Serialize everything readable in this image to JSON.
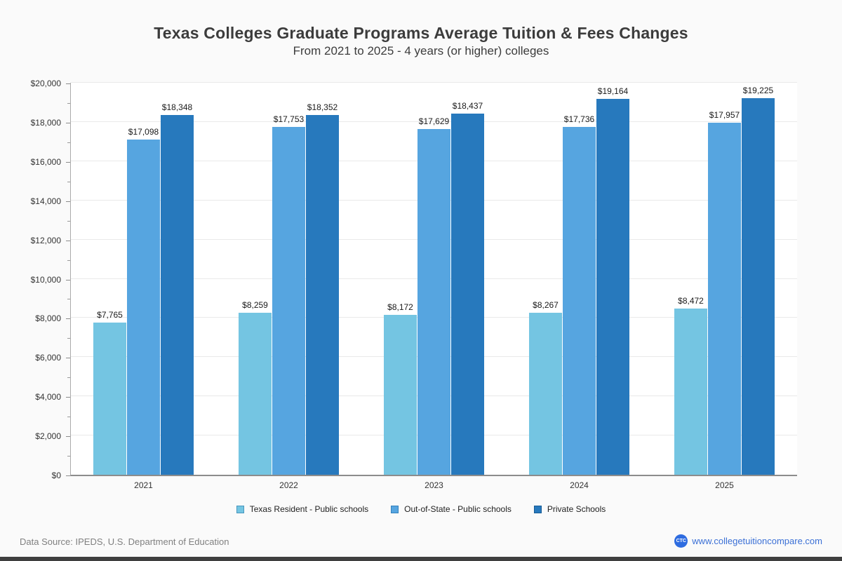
{
  "chart": {
    "title": "Texas Colleges Graduate Programs Average Tuition & Fees Changes",
    "subtitle": "From 2021 to 2025 - 4 years (or higher) colleges"
  },
  "chart_data": {
    "type": "bar",
    "categories": [
      "2021",
      "2022",
      "2023",
      "2024",
      "2025"
    ],
    "series": [
      {
        "name": "Texas Resident - Public schools",
        "color": "#74c5e2",
        "border": "#4896be",
        "values": [
          7765,
          8259,
          8172,
          8267,
          8472
        ]
      },
      {
        "name": "Out-of-State - Public schools",
        "color": "#56a5e0",
        "border": "#3381bd",
        "values": [
          17098,
          17753,
          17629,
          17736,
          17957
        ]
      },
      {
        "name": "Private Schools",
        "color": "#2779bd",
        "border": "#175b94",
        "values": [
          18348,
          18352,
          18437,
          19164,
          19225
        ]
      }
    ],
    "ylim": [
      0,
      20000
    ],
    "y_major_step": 2000,
    "y_minor_step": 1000,
    "y_tick_labels": [
      "$0",
      "$2,000",
      "$4,000",
      "$6,000",
      "$8,000",
      "$10,000",
      "$12,000",
      "$14,000",
      "$16,000",
      "$18,000",
      "$20,000"
    ],
    "value_label_prefix": "$",
    "grid": "horizontal-major",
    "legend_position": "bottom"
  },
  "footer": {
    "source": "Data Source: IPEDS, U.S. Department of Education",
    "logo_text": "CTC",
    "website": "www.collegetuitioncompare.com",
    "brand_color": "#2e6ce0",
    "link_color": "#3b70d6"
  }
}
